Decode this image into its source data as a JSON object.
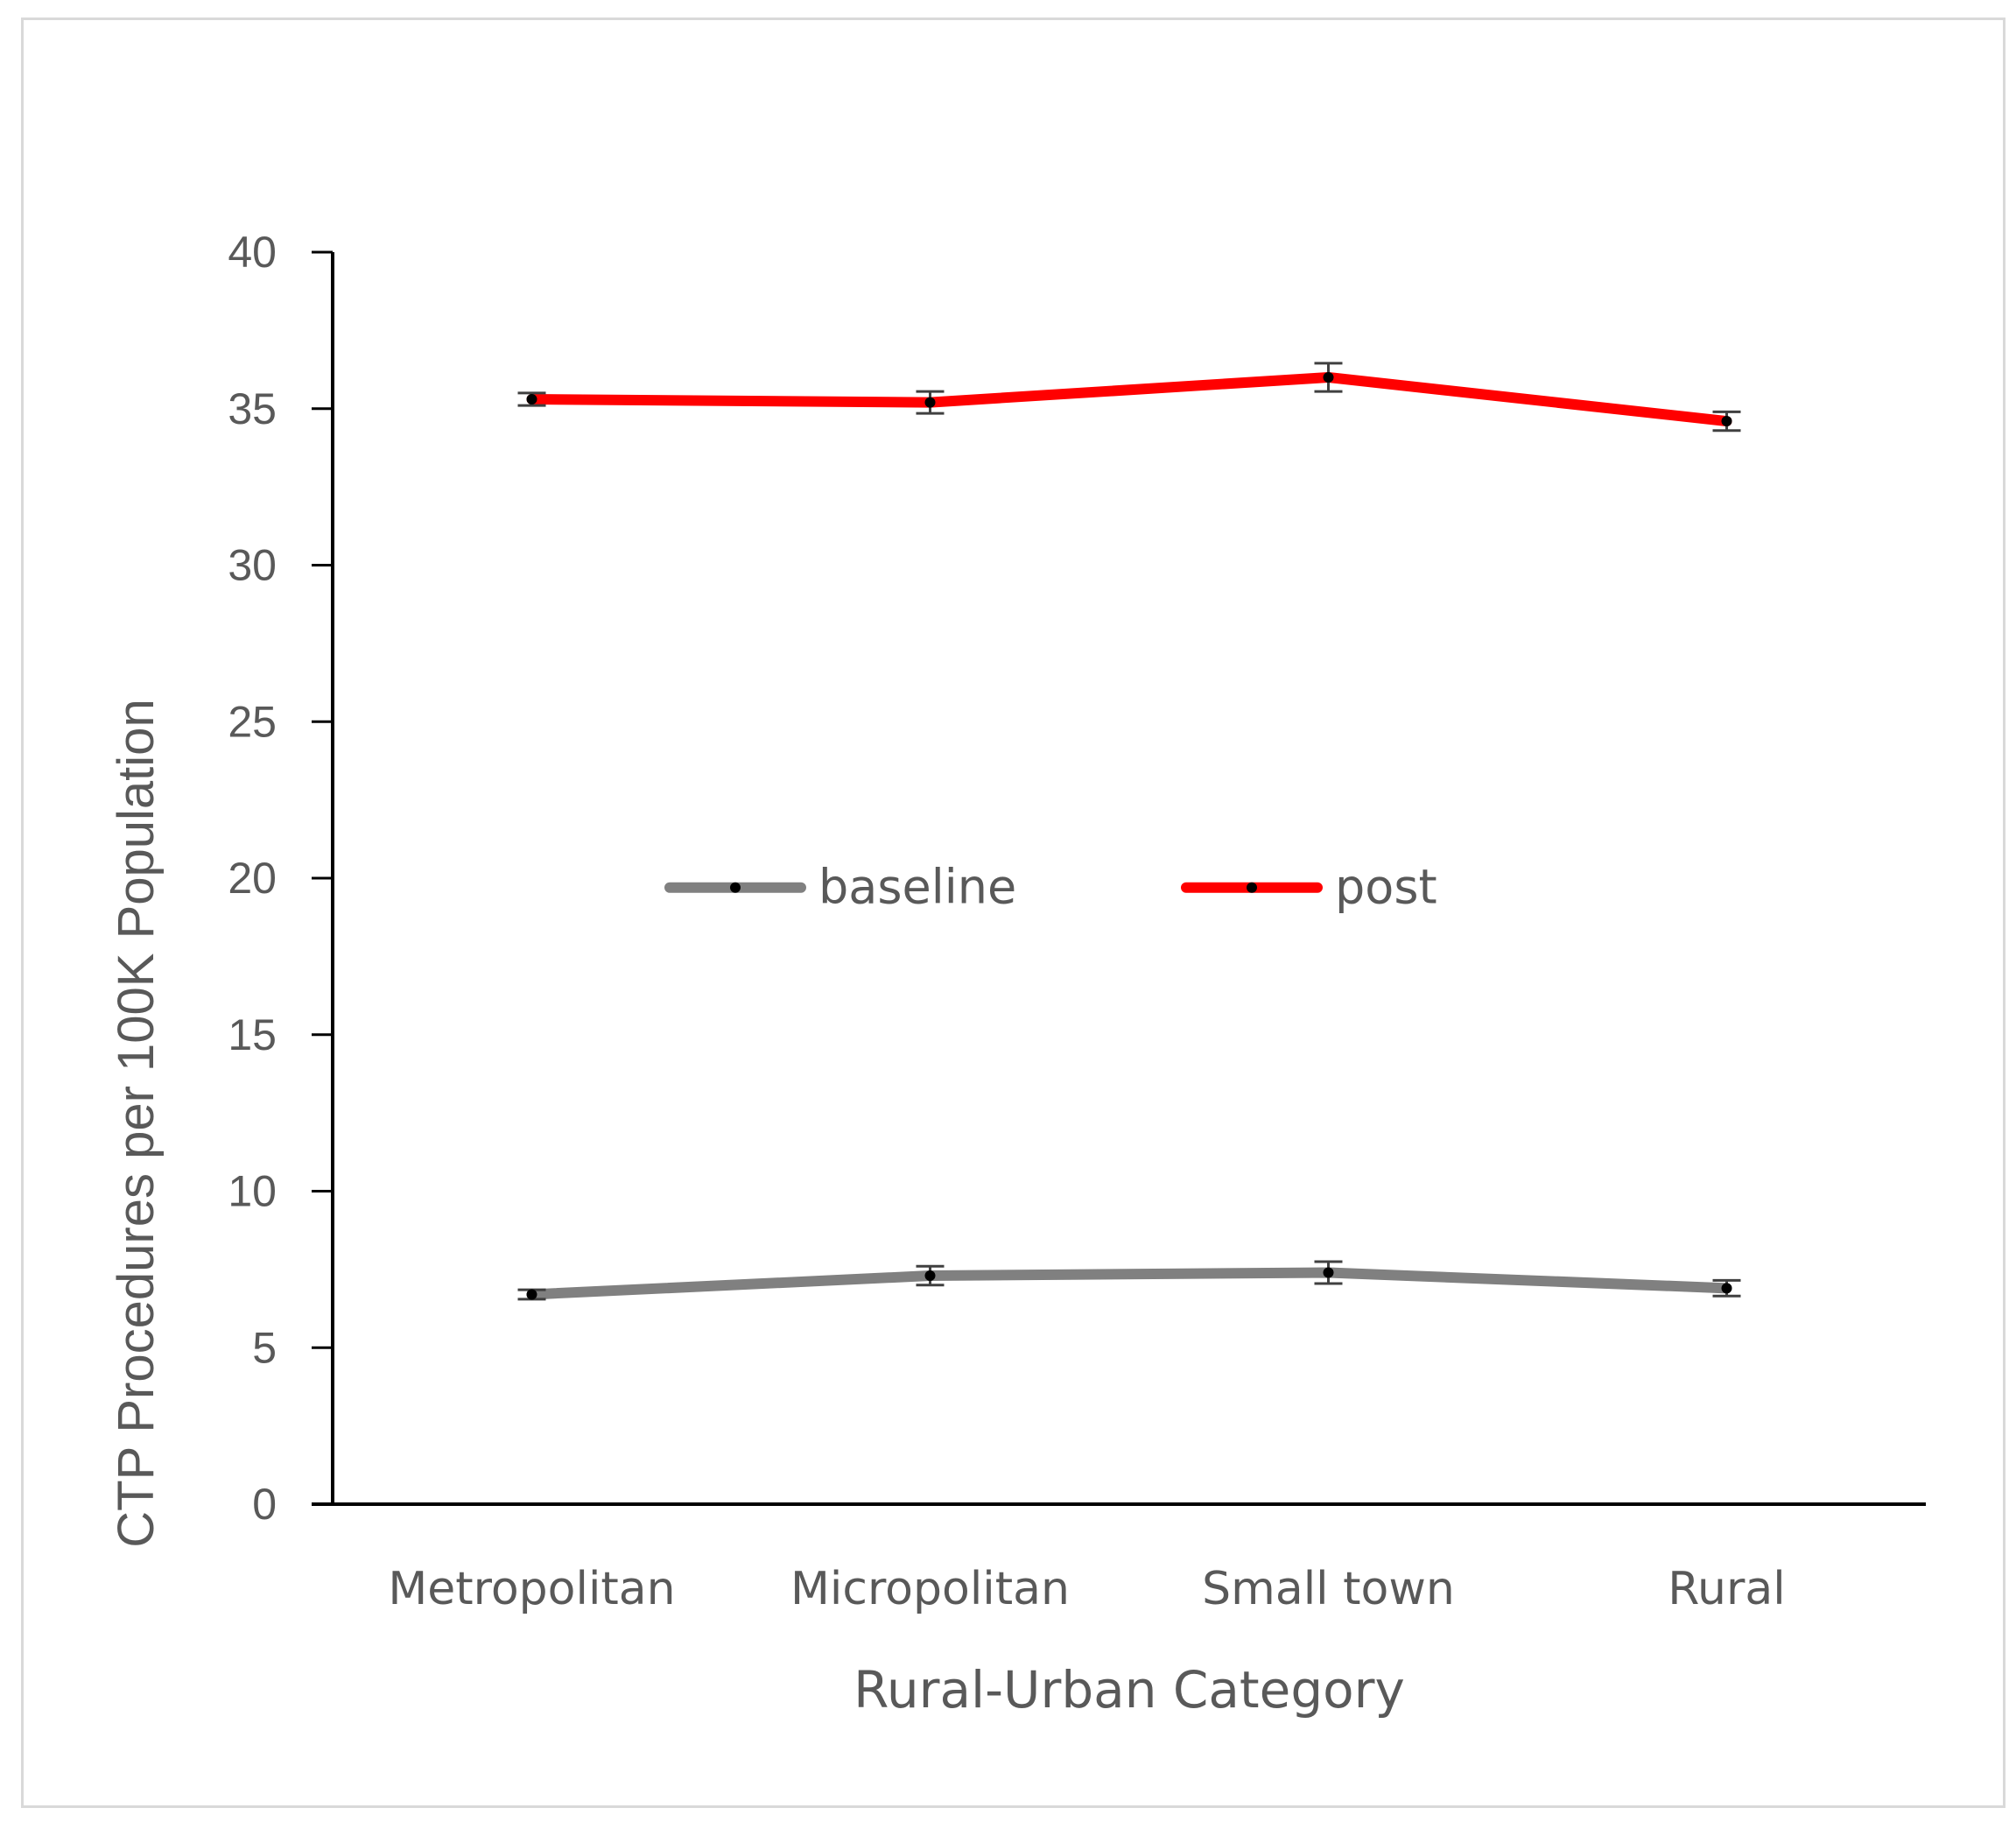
{
  "chart_data": {
    "type": "line",
    "categories": [
      "Metropolitan",
      "Micropolitan",
      "Small town",
      "Rural"
    ],
    "series": [
      {
        "name": "baseline",
        "values": [
          6.7,
          7.3,
          7.4,
          6.9
        ],
        "error": [
          0.15,
          0.3,
          0.35,
          0.25
        ],
        "color": "#808080"
      },
      {
        "name": "post",
        "values": [
          35.3,
          35.2,
          36.0,
          34.6
        ],
        "error": [
          0.2,
          0.35,
          0.45,
          0.3
        ],
        "color": "#ff0000"
      }
    ],
    "xlabel": "Rural-Urban Category",
    "ylabel": "CTP Procedures per 100K Population",
    "ylim": [
      0,
      40
    ],
    "yticks": [
      "0",
      "5",
      "10",
      "15",
      "20",
      "25",
      "30",
      "35",
      "40"
    ],
    "grid": false,
    "legend_position": "center"
  }
}
